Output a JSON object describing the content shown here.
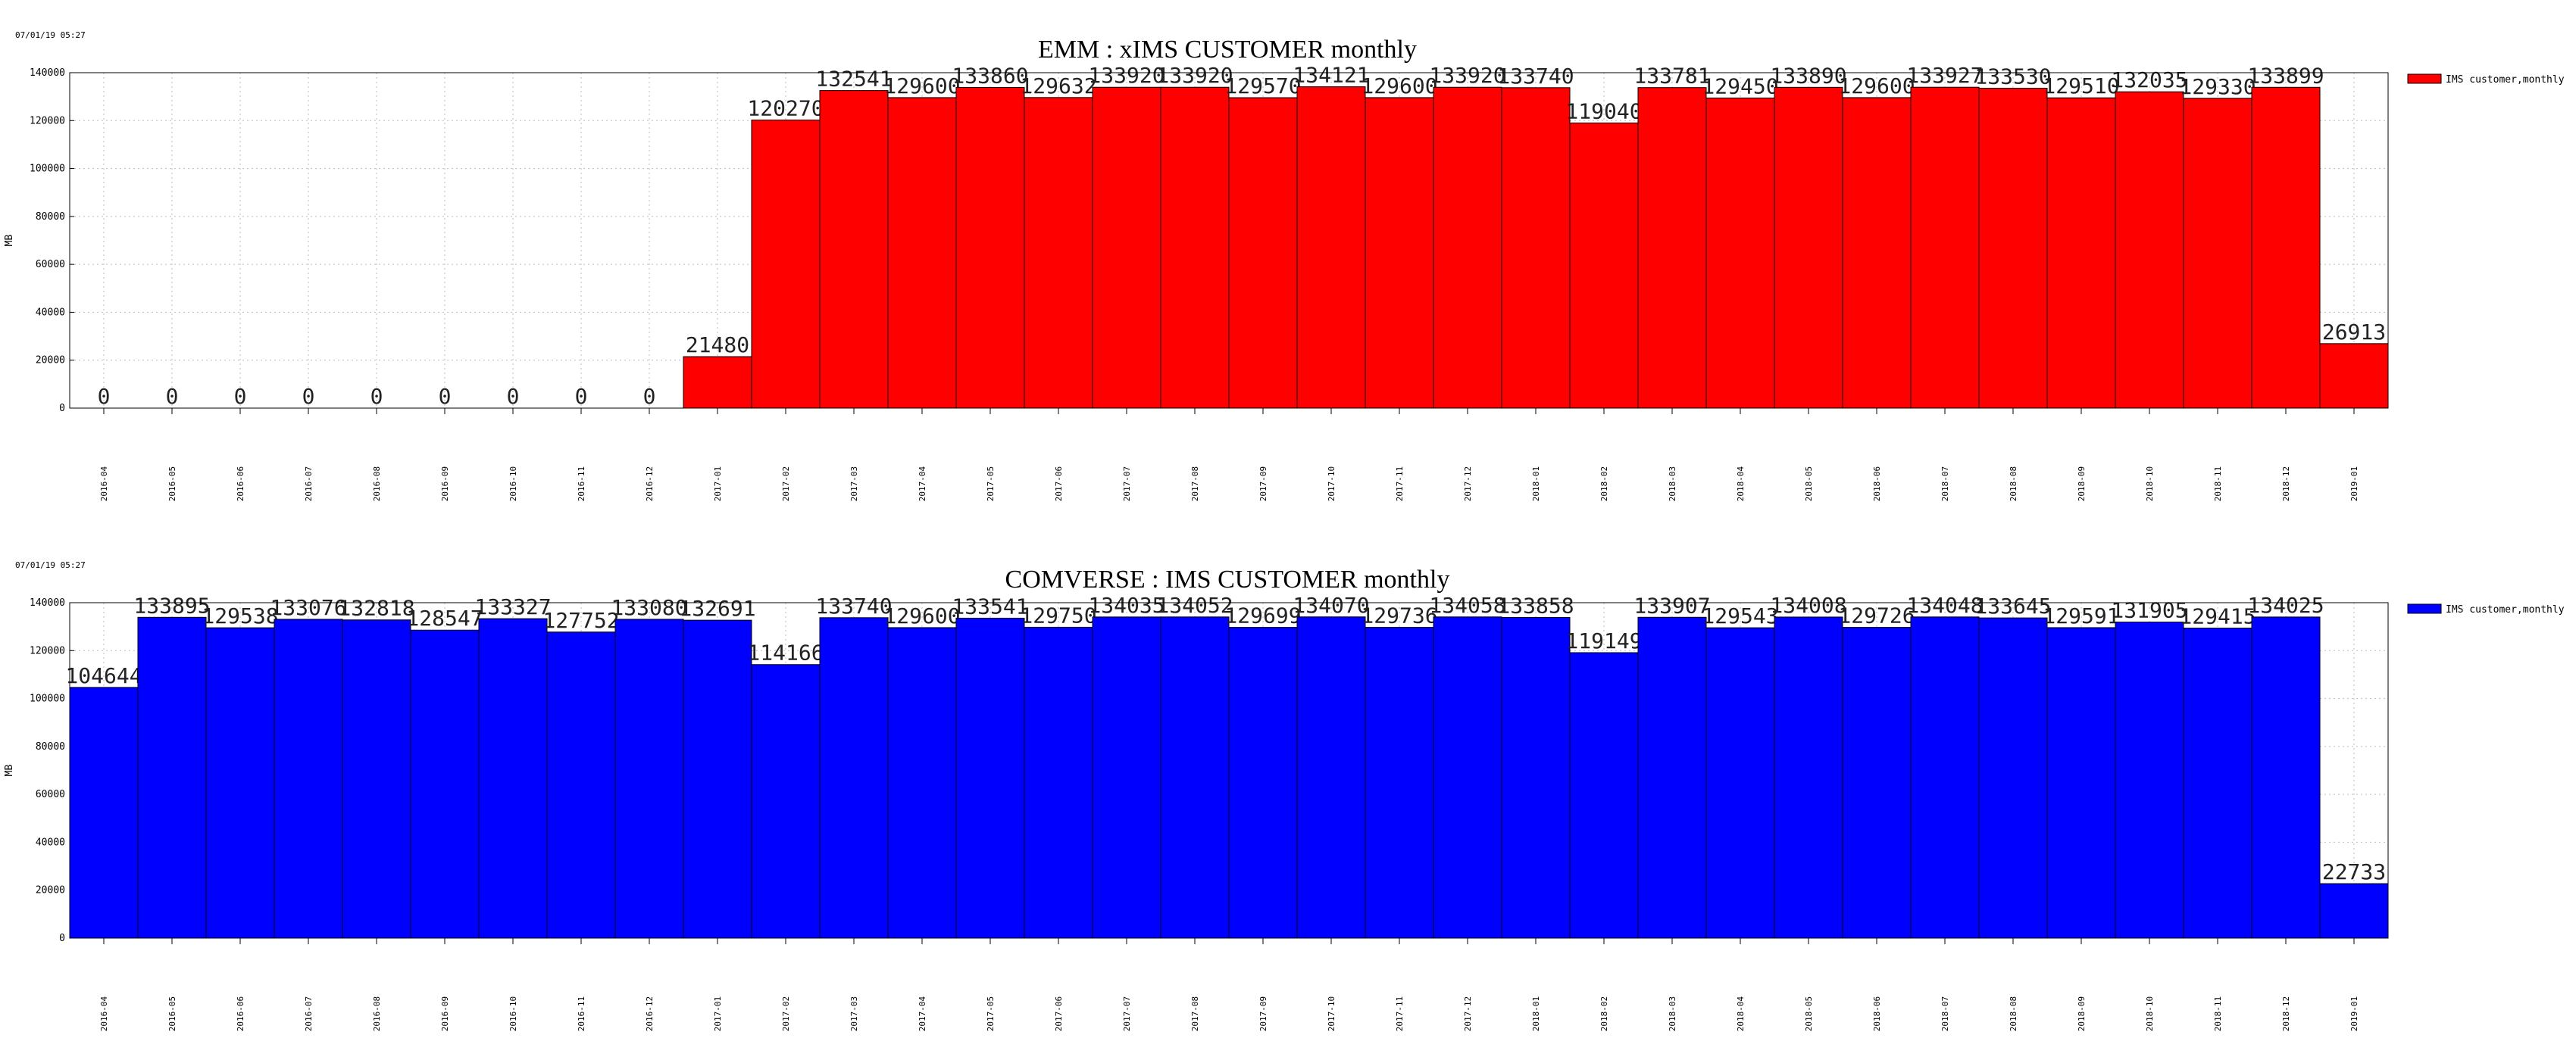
{
  "chart_data": [
    {
      "type": "bar",
      "stamp": "07/01/19 05:27",
      "title": "EMM : xIMS CUSTOMER monthly",
      "xlabel": "",
      "ylabel": "MB",
      "ylim": [
        0,
        140000
      ],
      "yticks": [
        0,
        20000,
        40000,
        60000,
        80000,
        100000,
        120000,
        140000
      ],
      "grid": true,
      "legend_position": "right",
      "categories": [
        "2016-04",
        "2016-05",
        "2016-06",
        "2016-07",
        "2016-08",
        "2016-09",
        "2016-10",
        "2016-11",
        "2016-12",
        "2017-01",
        "2017-02",
        "2017-03",
        "2017-04",
        "2017-05",
        "2017-06",
        "2017-07",
        "2017-08",
        "2017-09",
        "2017-10",
        "2017-11",
        "2017-12",
        "2018-01",
        "2018-02",
        "2018-03",
        "2018-04",
        "2018-05",
        "2018-06",
        "2018-07",
        "2018-08",
        "2018-09",
        "2018-10",
        "2018-11",
        "2018-12",
        "2019-01"
      ],
      "series": [
        {
          "name": "IMS customer,monthly",
          "color": "#ff0000",
          "values": [
            0,
            0,
            0,
            0,
            0,
            0,
            0,
            0,
            0,
            21480,
            120270,
            132541,
            129600,
            133860,
            129632,
            133920,
            133920,
            129570,
            134121,
            129600,
            133920,
            133740,
            119040,
            133781,
            129450,
            133890,
            129600,
            133927,
            133530,
            129510,
            132035,
            129330,
            133899,
            26913
          ]
        }
      ]
    },
    {
      "type": "bar",
      "stamp": "07/01/19 05:27",
      "title": "COMVERSE : IMS CUSTOMER monthly",
      "xlabel": "",
      "ylabel": "MB",
      "ylim": [
        0,
        140000
      ],
      "yticks": [
        0,
        20000,
        40000,
        60000,
        80000,
        100000,
        120000,
        140000
      ],
      "grid": true,
      "legend_position": "right",
      "categories": [
        "2016-04",
        "2016-05",
        "2016-06",
        "2016-07",
        "2016-08",
        "2016-09",
        "2016-10",
        "2016-11",
        "2016-12",
        "2017-01",
        "2017-02",
        "2017-03",
        "2017-04",
        "2017-05",
        "2017-06",
        "2017-07",
        "2017-08",
        "2017-09",
        "2017-10",
        "2017-11",
        "2017-12",
        "2018-01",
        "2018-02",
        "2018-03",
        "2018-04",
        "2018-05",
        "2018-06",
        "2018-07",
        "2018-08",
        "2018-09",
        "2018-10",
        "2018-11",
        "2018-12",
        "2019-01"
      ],
      "series": [
        {
          "name": "IMS customer,monthly",
          "color": "#0000ff",
          "values": [
            104644,
            133895,
            129538,
            133076,
            132818,
            128547,
            133327,
            127752,
            133080,
            132691,
            114166,
            133740,
            129600,
            133541,
            129750,
            134035,
            134052,
            129699,
            134070,
            129736,
            134058,
            133858,
            119149,
            133907,
            129543,
            134008,
            129726,
            134048,
            133645,
            129591,
            131905,
            129415,
            134025,
            22733
          ]
        }
      ]
    }
  ]
}
